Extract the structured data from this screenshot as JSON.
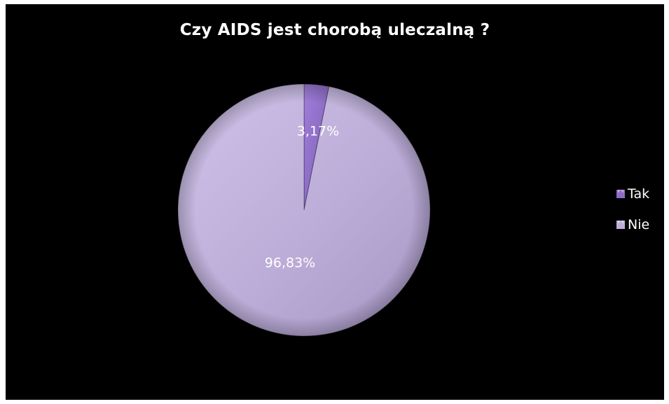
{
  "chart_data": {
    "type": "pie",
    "title": "Czy AIDS jest chorobą uleczalną ?",
    "slices": [
      {
        "label": "Tak",
        "value": 3.17,
        "display": "3,17%",
        "color": "#8e6cc6"
      },
      {
        "label": "Nie",
        "value": 96.83,
        "display": "96,83%",
        "color": "#bdaed8"
      }
    ],
    "legend_position": "right",
    "background": "#000000"
  }
}
